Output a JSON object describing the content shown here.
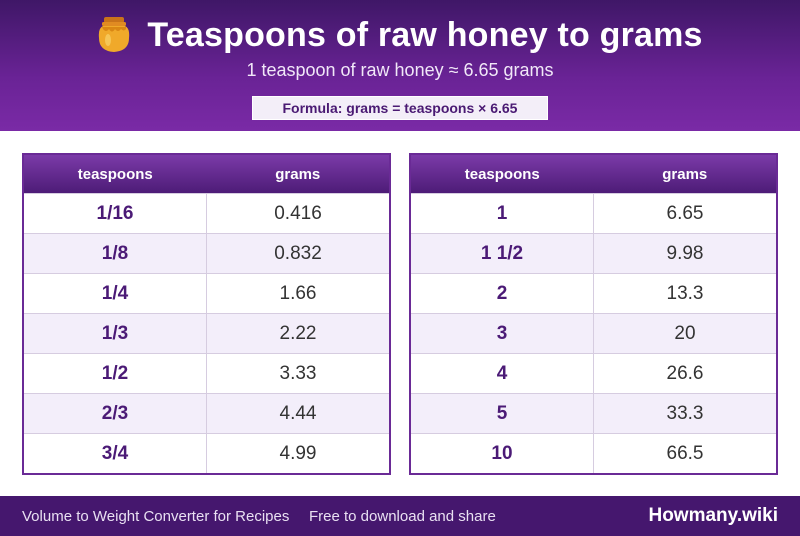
{
  "header": {
    "icon": "honey-jar-icon",
    "title": "Teaspoons of raw honey to grams",
    "subtitle": "1 teaspoon of raw honey ≈ 6.65 grams",
    "formula": "Formula: grams = teaspoons × 6.65"
  },
  "tables": [
    {
      "columns": [
        "teaspoons",
        "grams"
      ],
      "rows": [
        {
          "teaspoons": "1/16",
          "grams": "0.416"
        },
        {
          "teaspoons": "1/8",
          "grams": "0.832"
        },
        {
          "teaspoons": "1/4",
          "grams": "1.66"
        },
        {
          "teaspoons": "1/3",
          "grams": "2.22"
        },
        {
          "teaspoons": "1/2",
          "grams": "3.33"
        },
        {
          "teaspoons": "2/3",
          "grams": "4.44"
        },
        {
          "teaspoons": "3/4",
          "grams": "4.99"
        }
      ]
    },
    {
      "columns": [
        "teaspoons",
        "grams"
      ],
      "rows": [
        {
          "teaspoons": "1",
          "grams": "6.65"
        },
        {
          "teaspoons": "1 1/2",
          "grams": "9.98"
        },
        {
          "teaspoons": "2",
          "grams": "13.3"
        },
        {
          "teaspoons": "3",
          "grams": "20"
        },
        {
          "teaspoons": "4",
          "grams": "26.6"
        },
        {
          "teaspoons": "5",
          "grams": "33.3"
        },
        {
          "teaspoons": "10",
          "grams": "66.5"
        }
      ]
    }
  ],
  "footer": {
    "left": "Volume to Weight Converter for Recipes",
    "middle": "Free to download and share",
    "brand": "Howmany.wiki"
  },
  "colors": {
    "header_dark": "#3f1767",
    "header_light": "#7a2aa6",
    "accent_text": "#4b1a76",
    "row_alt": "#f3eefa",
    "footer": "#45176e"
  }
}
